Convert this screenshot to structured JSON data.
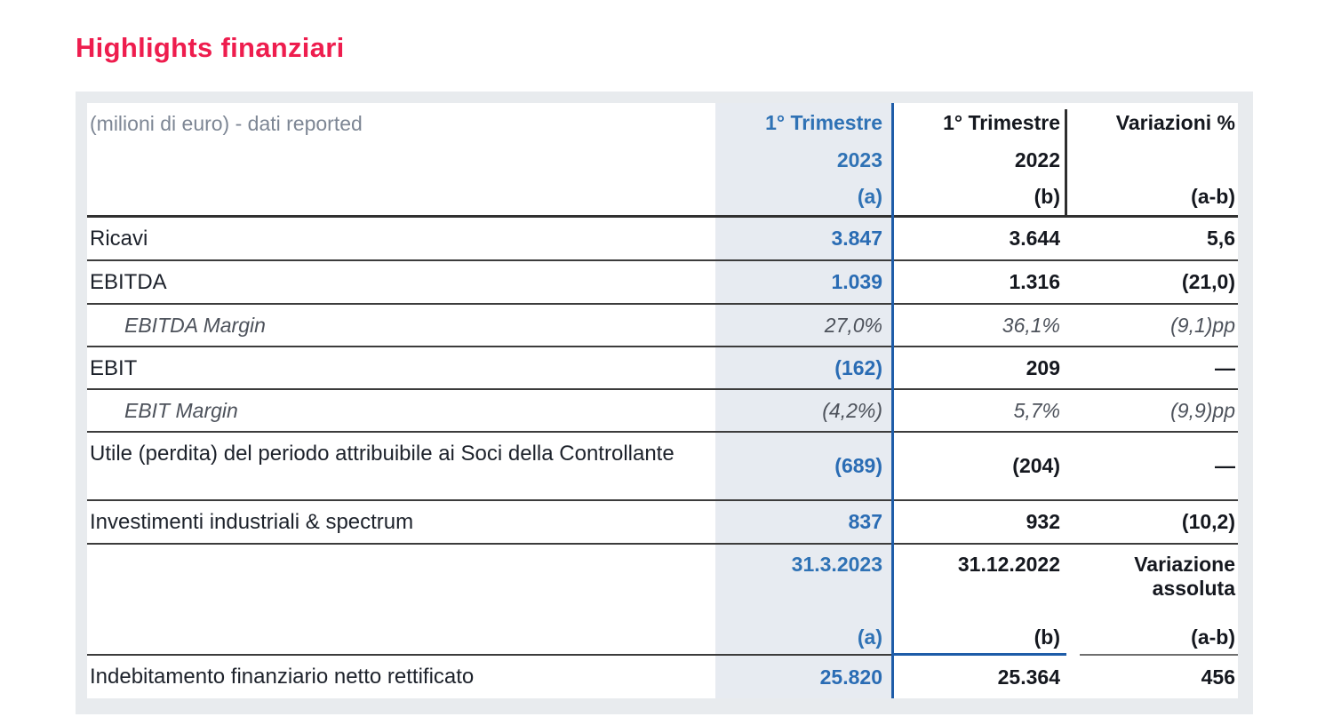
{
  "title": "Highlights finanziari",
  "colors": {
    "title_red": "#ee1d4e",
    "accent_blue": "#2a6cb4",
    "column_highlight": "#e7ebf1",
    "panel_gray": "#e8ebee"
  },
  "table": {
    "unit_label": "(milioni di euro) - dati reported",
    "period_header": {
      "a": {
        "line1": "1° Trimestre",
        "line2": "2023",
        "sub": "(a)"
      },
      "b": {
        "line1": "1° Trimestre",
        "line2": "2022",
        "sub": "(b)"
      },
      "variation": {
        "line1": "Variazioni %",
        "sub": "(a-b)"
      }
    },
    "rows": [
      {
        "label": "Ricavi",
        "a": "3.847",
        "b": "3.644",
        "variation": "5,6"
      },
      {
        "label": "EBITDA",
        "a": "1.039",
        "b": "1.316",
        "variation": "(21,0)"
      },
      {
        "label": "EBITDA Margin",
        "a": "27,0%",
        "b": "36,1%",
        "variation": "(9,1)pp"
      },
      {
        "label": "EBIT",
        "a": "(162)",
        "b": "209",
        "variation": "—"
      },
      {
        "label": "EBIT Margin",
        "a": "(4,2%)",
        "b": "5,7%",
        "variation": "(9,9)pp"
      },
      {
        "label": "Utile (perdita) del periodo attribuibile ai Soci della Controllante",
        "a": "(689)",
        "b": "(204)",
        "variation": "—"
      },
      {
        "label": "Investimenti industriali & spectrum",
        "a": "837",
        "b": "932",
        "variation": "(10,2)"
      }
    ],
    "date_header": {
      "a": {
        "line1": "31.3.2023",
        "sub": "(a)"
      },
      "b": {
        "line1": "31.12.2022",
        "sub": "(b)"
      },
      "variation": {
        "line1": "Variazione",
        "line2": "assoluta",
        "sub": "(a-b)"
      }
    },
    "rows2": [
      {
        "label": "Indebitamento finanziario netto rettificato",
        "a": "25.820",
        "b": "25.364",
        "variation": "456"
      }
    ]
  }
}
